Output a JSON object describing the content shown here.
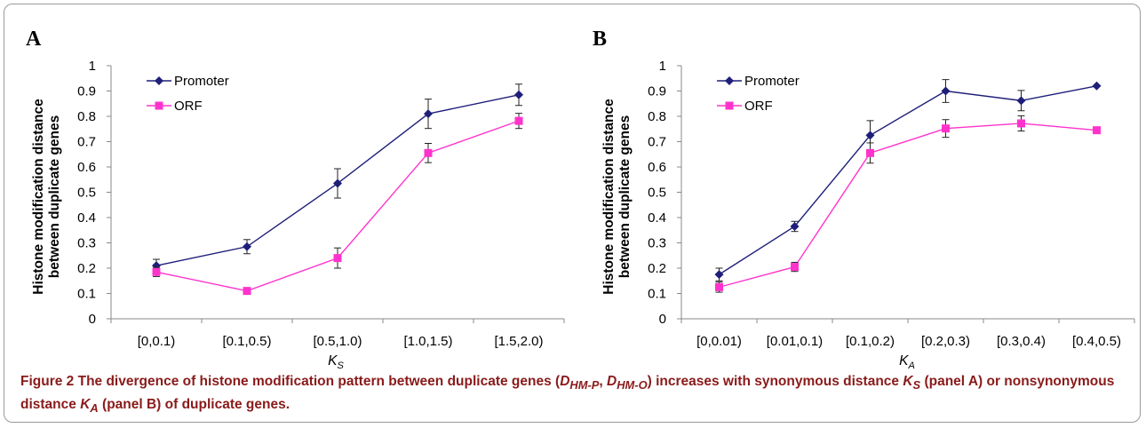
{
  "chart_data": [
    {
      "type": "line",
      "panel_label": "A",
      "categories": [
        "[0,0.1)",
        "[0.1,0.5)",
        "[0.5,1.0)",
        "[1.0,1.5)",
        "[1.5,2.0)"
      ],
      "series": [
        {
          "name": "Promoter",
          "values": [
            0.21,
            0.285,
            0.535,
            0.81,
            0.885
          ],
          "errors": [
            0.025,
            0.028,
            0.058,
            0.058,
            0.042
          ],
          "color": "#1f1f7a",
          "marker": "diamond"
        },
        {
          "name": "ORF",
          "values": [
            0.185,
            0.11,
            0.24,
            0.655,
            0.782
          ],
          "errors": [
            0.018,
            0.012,
            0.04,
            0.038,
            0.03
          ],
          "color": "#ff33cc",
          "marker": "square"
        }
      ],
      "ylabel_line1": "Histone modification distance",
      "ylabel_line2": "between duplicate genes",
      "xlabel_main": "K",
      "xlabel_sub": "S",
      "ylim": [
        0,
        1
      ],
      "yticks": [
        "0",
        "0.1",
        "0.2",
        "0.3",
        "0.4",
        "0.5",
        "0.6",
        "0.7",
        "0.8",
        "0.9",
        "1"
      ],
      "legend_position": "top-left"
    },
    {
      "type": "line",
      "panel_label": "B",
      "categories": [
        "[0,0.01)",
        "[0.01,0.1)",
        "[0.1,0.2)",
        "[0.2,0.3)",
        "[0.3,0.4)",
        "[0.4,0.5)"
      ],
      "series": [
        {
          "name": "Promoter",
          "values": [
            0.175,
            0.365,
            0.725,
            0.9,
            0.862,
            0.92
          ],
          "errors": [
            0.025,
            0.02,
            0.058,
            0.045,
            0.04,
            0.0
          ],
          "color": "#1f1f7a",
          "marker": "diamond"
        },
        {
          "name": "ORF",
          "values": [
            0.125,
            0.205,
            0.655,
            0.752,
            0.772,
            0.745
          ],
          "errors": [
            0.02,
            0.018,
            0.04,
            0.035,
            0.03,
            0.0
          ],
          "color": "#ff33cc",
          "marker": "square"
        }
      ],
      "ylabel_line1": "Histone modification distance",
      "ylabel_line2": "between duplicate genes",
      "xlabel_main": "K",
      "xlabel_sub": "A",
      "ylim": [
        0,
        1
      ],
      "yticks": [
        "0",
        "0.1",
        "0.2",
        "0.3",
        "0.4",
        "0.5",
        "0.6",
        "0.7",
        "0.8",
        "0.9",
        "1"
      ],
      "legend_position": "top-left"
    }
  ],
  "caption": {
    "label": "Figure 2",
    "p1": " The divergence of histone modification pattern between duplicate genes (",
    "d1": "D",
    "d1_sub": "HM-P",
    "sep": ", ",
    "d2": "D",
    "d2_sub": "HM-O",
    "p2": ") increases with synonymous distance ",
    "k1": "K",
    "k1_sub": "S",
    "p3": " (panel A) or nonsynonymous distance ",
    "k2": "K",
    "k2_sub": "A",
    "p4": " (panel B) of duplicate genes."
  }
}
